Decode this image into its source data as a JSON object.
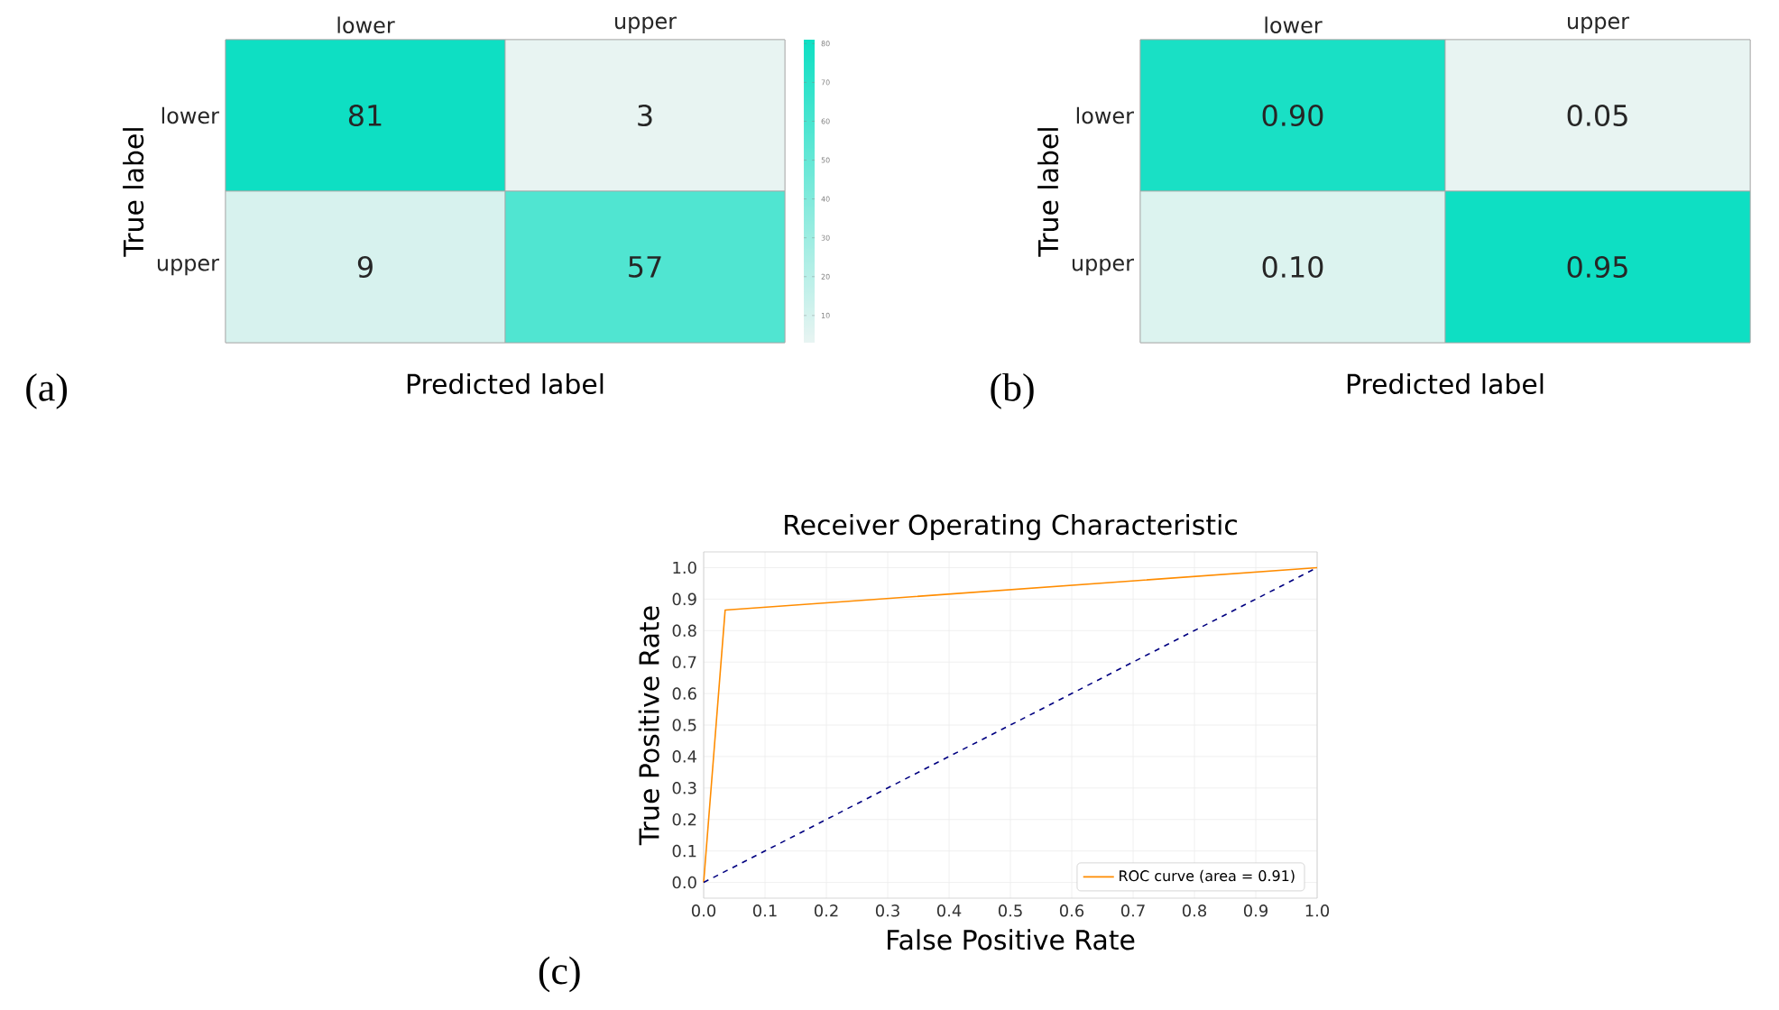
{
  "chart_data": [
    {
      "type": "heatmap",
      "categories": [
        "lower",
        "upper"
      ],
      "y_categories": [
        "lower",
        "upper"
      ],
      "cells": [
        [
          81,
          3
        ],
        [
          9,
          57
        ]
      ],
      "data_labels": true,
      "xlabel": "Predicted label",
      "ylabel": "True label",
      "clim": [
        3,
        81
      ],
      "cticks": [
        10,
        20,
        30,
        40,
        50,
        60,
        70,
        80
      ],
      "annotations": [
        "(a)"
      ]
    },
    {
      "type": "heatmap",
      "categories": [
        "lower",
        "upper"
      ],
      "y_categories": [
        "lower",
        "upper"
      ],
      "cells": [
        [
          0.9,
          0.05
        ],
        [
          0.1,
          0.95
        ]
      ],
      "cell_labels": [
        [
          "0.90",
          "0.05"
        ],
        [
          "0.10",
          "0.95"
        ]
      ],
      "xlabel": "Predicted label",
      "ylabel": "True label",
      "annotations": [
        "(b)"
      ]
    },
    {
      "type": "line",
      "title": "Receiver Operating Characteristic",
      "xlabel": "False Positive Rate",
      "ylabel": "True Positive Rate",
      "xlim": [
        0,
        1
      ],
      "ylim": [
        -0.05,
        1.05
      ],
      "xticks": [
        {
          "value": 0,
          "label": "0.0"
        },
        0.1,
        0.2,
        0.3,
        0.4,
        0.5,
        0.6,
        0.7,
        0.8,
        0.9,
        {
          "value": 1,
          "label": "1.0"
        }
      ],
      "yticks": [
        {
          "value": 0,
          "label": "0.0"
        },
        0.1,
        0.2,
        0.3,
        0.4,
        0.5,
        0.6,
        0.7,
        0.8,
        0.9,
        {
          "value": 1,
          "label": "1.0"
        }
      ],
      "grid": true,
      "legend": "bottom right",
      "annotations": [
        "(c)"
      ],
      "series": [
        {
          "name": "ROC curve (area = 0.91)",
          "color": "#ff8c00",
          "x": [
            0,
            0.035,
            1
          ],
          "values": [
            0,
            0.865,
            1
          ]
        },
        {
          "color": "#000080",
          "line_style": "dashed",
          "x": [
            0,
            1
          ],
          "values": [
            0,
            1
          ]
        }
      ]
    }
  ]
}
